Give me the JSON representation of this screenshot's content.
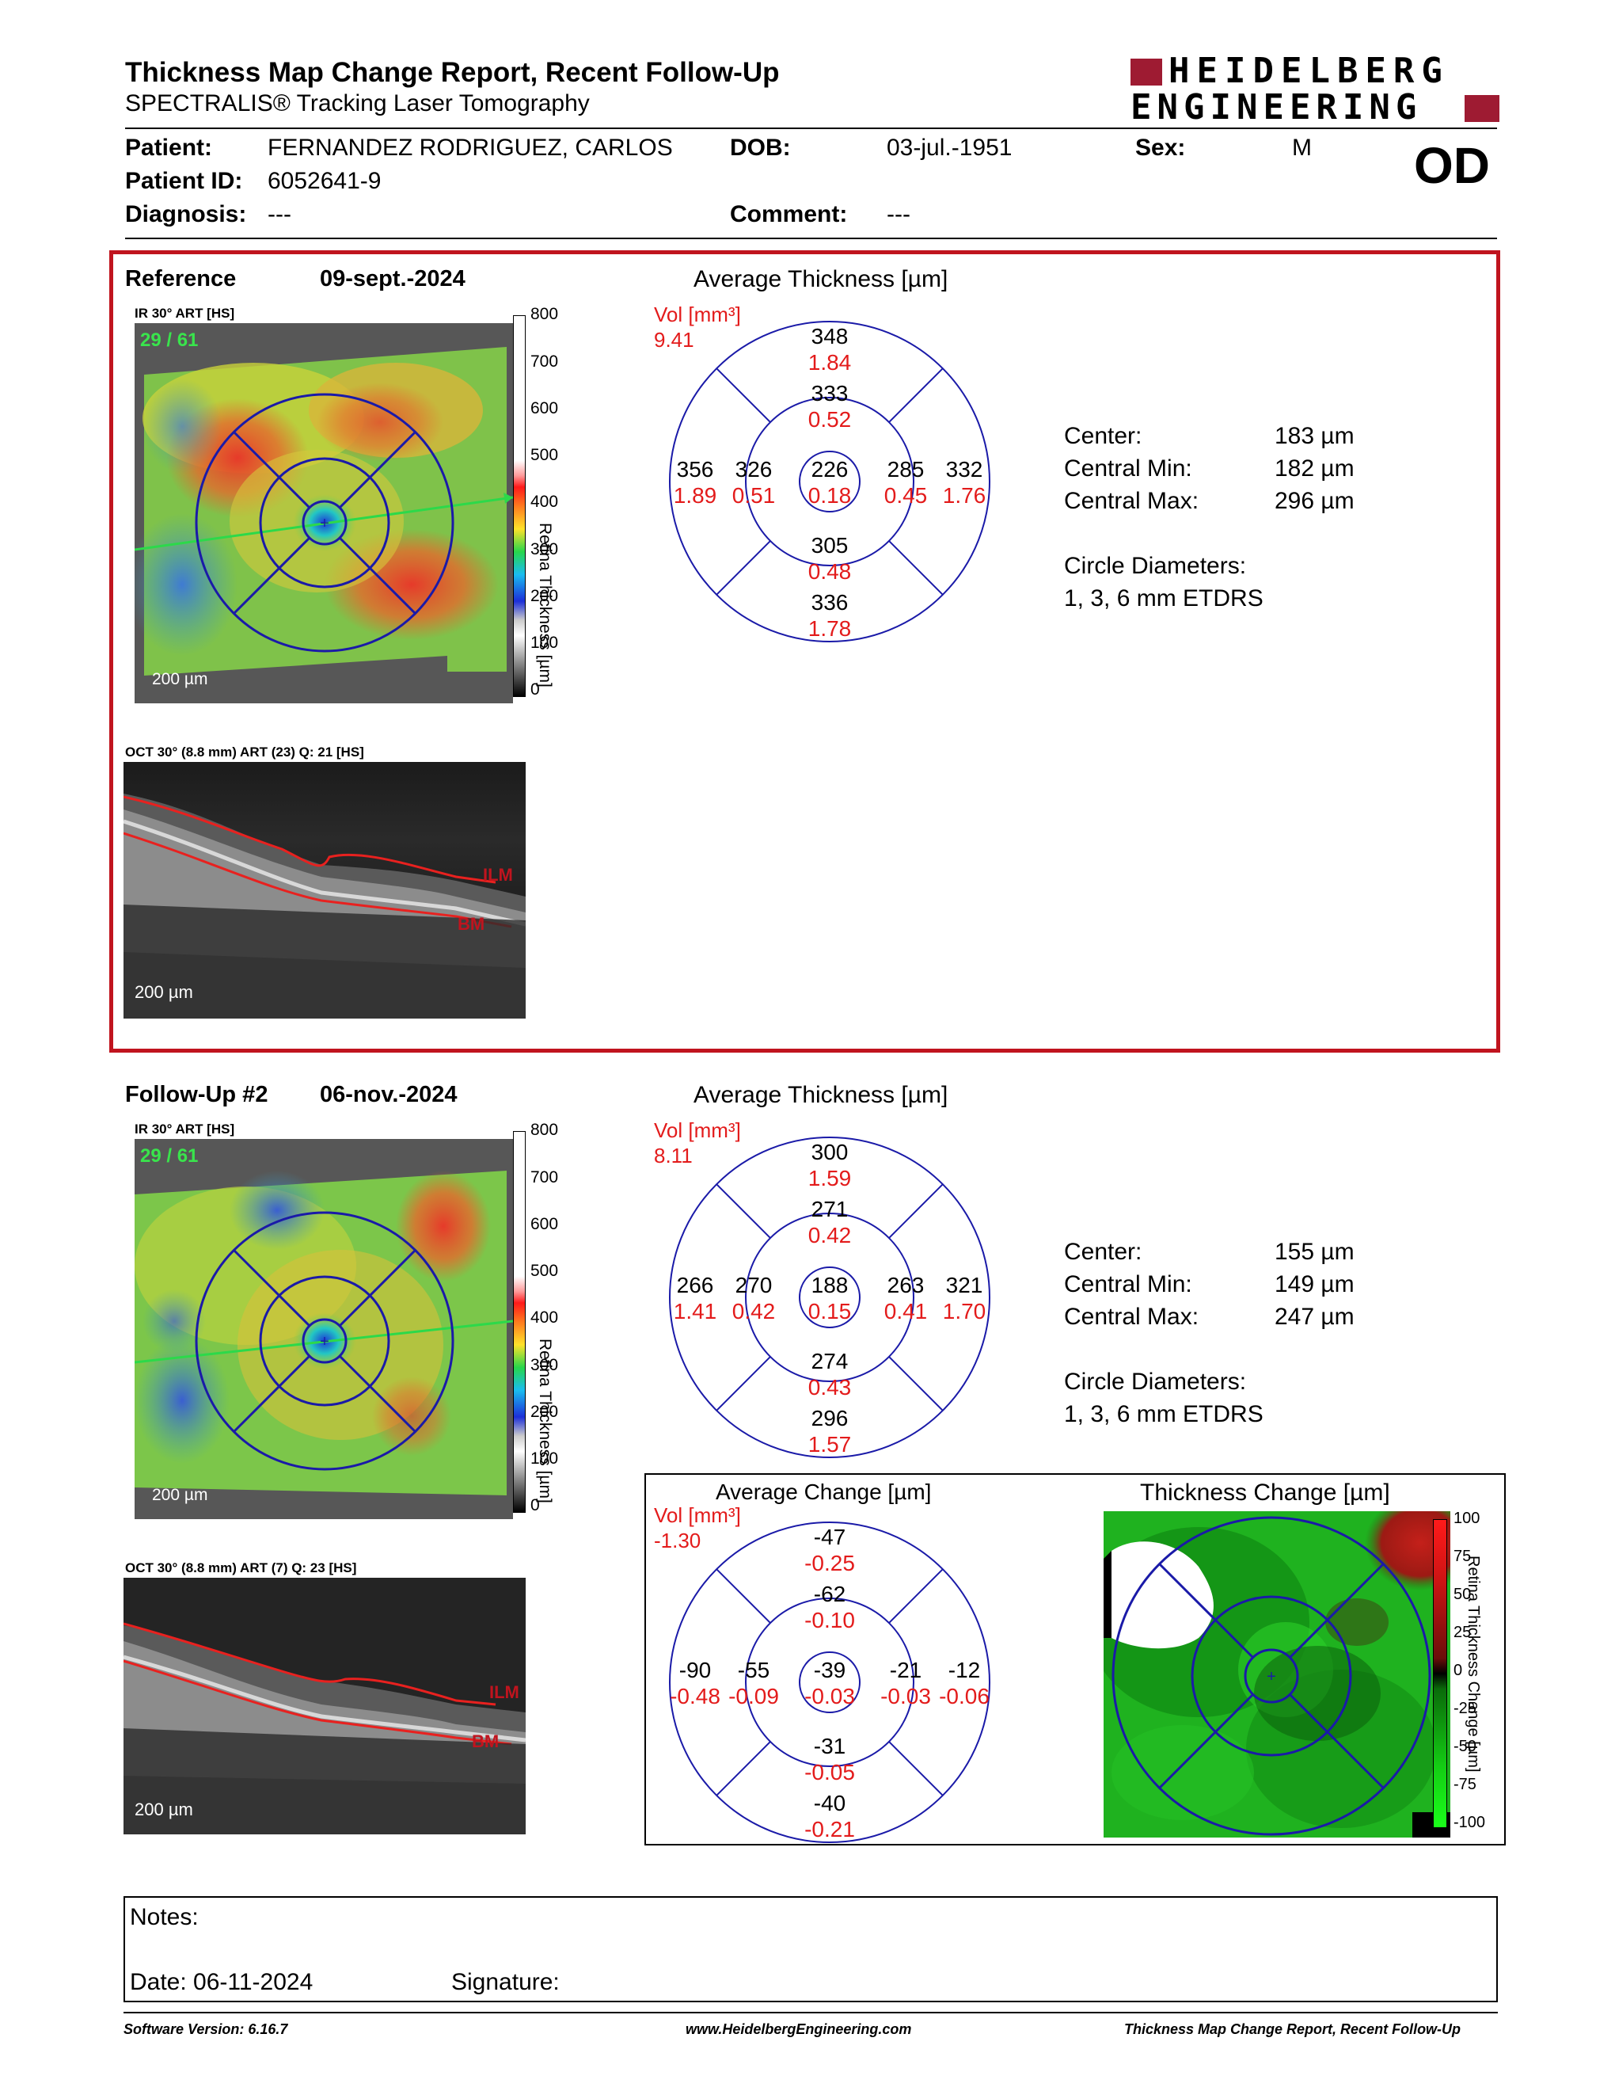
{
  "header": {
    "title": "Thickness Map Change Report, Recent Follow-Up",
    "subtitle": "SPECTRALIS® Tracking Laser Tomography",
    "logo_line1": "HEIDELBERG",
    "logo_line2": "ENGINEERING",
    "eye": "OD"
  },
  "patient": {
    "patient_label": "Patient:",
    "patient_value": "FERNANDEZ RODRIGUEZ, CARLOS",
    "dob_label": "DOB:",
    "dob_value": "03-jul.-1951",
    "sex_label": "Sex:",
    "sex_value": "M",
    "id_label": "Patient ID:",
    "id_value": "6052641-9",
    "diagnosis_label": "Diagnosis:",
    "diagnosis_value": "---",
    "comment_label": "Comment:",
    "comment_value": "---"
  },
  "reference": {
    "label": "Reference",
    "date": "09-sept.-2024",
    "ir_label": "IR 30° ART [HS]",
    "ir_counter": "29 / 61",
    "scale_bar": "200 µm",
    "colorbar_ticks": [
      "800",
      "700",
      "600",
      "500",
      "400",
      "300",
      "200",
      "100",
      "0"
    ],
    "colorbar_title": "Retina Thickness [µm]",
    "oct_label": "OCT 30° (8.8 mm) ART (23) Q: 21 [HS]",
    "oct_ilm": "ILM",
    "oct_bm": "BM",
    "oct_scale": "200 µm",
    "grid_title": "Average Thickness [µm]",
    "vol_label": "Vol [mm³]",
    "vol_value": "9.41",
    "sectors": {
      "outer_superior": {
        "t": "348",
        "v": "1.84"
      },
      "inner_superior": {
        "t": "333",
        "v": "0.52"
      },
      "outer_temporal": {
        "t": "356",
        "v": "1.89"
      },
      "inner_temporal": {
        "t": "326",
        "v": "0.51"
      },
      "center": {
        "t": "226",
        "v": "0.18"
      },
      "inner_nasal": {
        "t": "285",
        "v": "0.45"
      },
      "outer_nasal": {
        "t": "332",
        "v": "1.76"
      },
      "inner_inferior": {
        "t": "305",
        "v": "0.48"
      },
      "outer_inferior": {
        "t": "336",
        "v": "1.78"
      }
    },
    "stats": {
      "center_label": "Center:",
      "center_value": "183 µm",
      "min_label": "Central Min:",
      "min_value": "182 µm",
      "max_label": "Central Max:",
      "max_value": "296 µm",
      "diam_label": "Circle Diameters:",
      "diam_value": "1, 3, 6 mm ETDRS"
    }
  },
  "followup": {
    "label": "Follow-Up #2",
    "date": "06-nov.-2024",
    "ir_label": "IR 30° ART [HS]",
    "ir_counter": "29 / 61",
    "scale_bar": "200 µm",
    "colorbar_ticks": [
      "800",
      "700",
      "600",
      "500",
      "400",
      "300",
      "200",
      "100",
      "0"
    ],
    "colorbar_title": "Retina Thickness [µm]",
    "oct_label": "OCT 30° (8.8 mm) ART (7) Q: 23 [HS]",
    "oct_ilm": "ILM",
    "oct_bm": "BM",
    "oct_scale": "200 µm",
    "grid_title": "Average Thickness [µm]",
    "vol_label": "Vol [mm³]",
    "vol_value": "8.11",
    "sectors": {
      "outer_superior": {
        "t": "300",
        "v": "1.59"
      },
      "inner_superior": {
        "t": "271",
        "v": "0.42"
      },
      "outer_temporal": {
        "t": "266",
        "v": "1.41"
      },
      "inner_temporal": {
        "t": "270",
        "v": "0.42"
      },
      "center": {
        "t": "188",
        "v": "0.15"
      },
      "inner_nasal": {
        "t": "263",
        "v": "0.41"
      },
      "outer_nasal": {
        "t": "321",
        "v": "1.70"
      },
      "inner_inferior": {
        "t": "274",
        "v": "0.43"
      },
      "outer_inferior": {
        "t": "296",
        "v": "1.57"
      }
    },
    "stats": {
      "center_label": "Center:",
      "center_value": "155 µm",
      "min_label": "Central Min:",
      "min_value": "149 µm",
      "max_label": "Central Max:",
      "max_value": "247 µm",
      "diam_label": "Circle Diameters:",
      "diam_value": "1, 3, 6 mm ETDRS"
    }
  },
  "change": {
    "grid_title": "Average Change [µm]",
    "vol_label": "Vol [mm³]",
    "vol_value": "-1.30",
    "sectors": {
      "outer_superior": {
        "t": "-47",
        "v": "-0.25"
      },
      "inner_superior": {
        "t": "-62",
        "v": "-0.10"
      },
      "outer_temporal": {
        "t": "-90",
        "v": "-0.48"
      },
      "inner_temporal": {
        "t": "-55",
        "v": "-0.09"
      },
      "center": {
        "t": "-39",
        "v": "-0.03"
      },
      "inner_nasal": {
        "t": "-21",
        "v": "-0.03"
      },
      "outer_nasal": {
        "t": "-12",
        "v": "-0.06"
      },
      "inner_inferior": {
        "t": "-31",
        "v": "-0.05"
      },
      "outer_inferior": {
        "t": "-40",
        "v": "-0.21"
      }
    },
    "map_title": "Thickness Change [µm]",
    "map_ticks": [
      "100",
      "75",
      "50",
      "25",
      "0",
      "-25",
      "-50",
      "-75",
      "-100"
    ],
    "map_colorbar_title": "Retina Thickness Change [µm]"
  },
  "notes": {
    "notes_label": "Notes:",
    "date_label": "Date: 06-11-2024",
    "signature_label": "Signature:"
  },
  "footer": {
    "software": "Software Version: 6.16.7",
    "url": "www.HeidelbergEngineering.com",
    "report": "Thickness Map Change Report, Recent Follow-Up"
  },
  "colors": {
    "frame_red": "#c0141e",
    "grid_blue": "#1a1aa8",
    "value_red": "#e31b1b",
    "logo_red": "#9e1b32"
  }
}
